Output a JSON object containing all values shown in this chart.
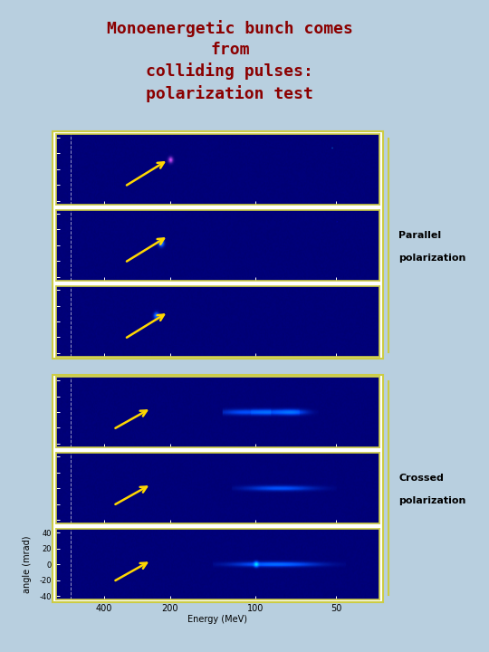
{
  "title_line1": "Monoenergetic bunch comes",
  "title_line2": "from",
  "title_line3": "colliding pulses:",
  "title_line4": "polarization test",
  "title_color": "#8B0000",
  "bg_color": "#b8cfdf",
  "panel_bg_rgb": [
    0.0,
    0.0,
    0.45
  ],
  "n_panels": 6,
  "parallel_label_line1": "Parallel",
  "parallel_label_line2": "polarization",
  "crossed_label_line1": "Crossed",
  "crossed_label_line2": "polarization",
  "xlabel": "Energy (MeV)",
  "ylabel": "angle (mrad)",
  "yticks": [
    -40,
    -20,
    0,
    20,
    40
  ],
  "xtick_labels": [
    "400",
    "200",
    "100",
    "50"
  ],
  "brace_color": "#cccc44",
  "arrow_color": "#FFD700",
  "panel_border_color": "#cccc44",
  "cyan_border": "#00cccc",
  "label_color": "#000000",
  "title_fontsize": 13,
  "label_fontsize": 8,
  "tick_fontsize": 6
}
